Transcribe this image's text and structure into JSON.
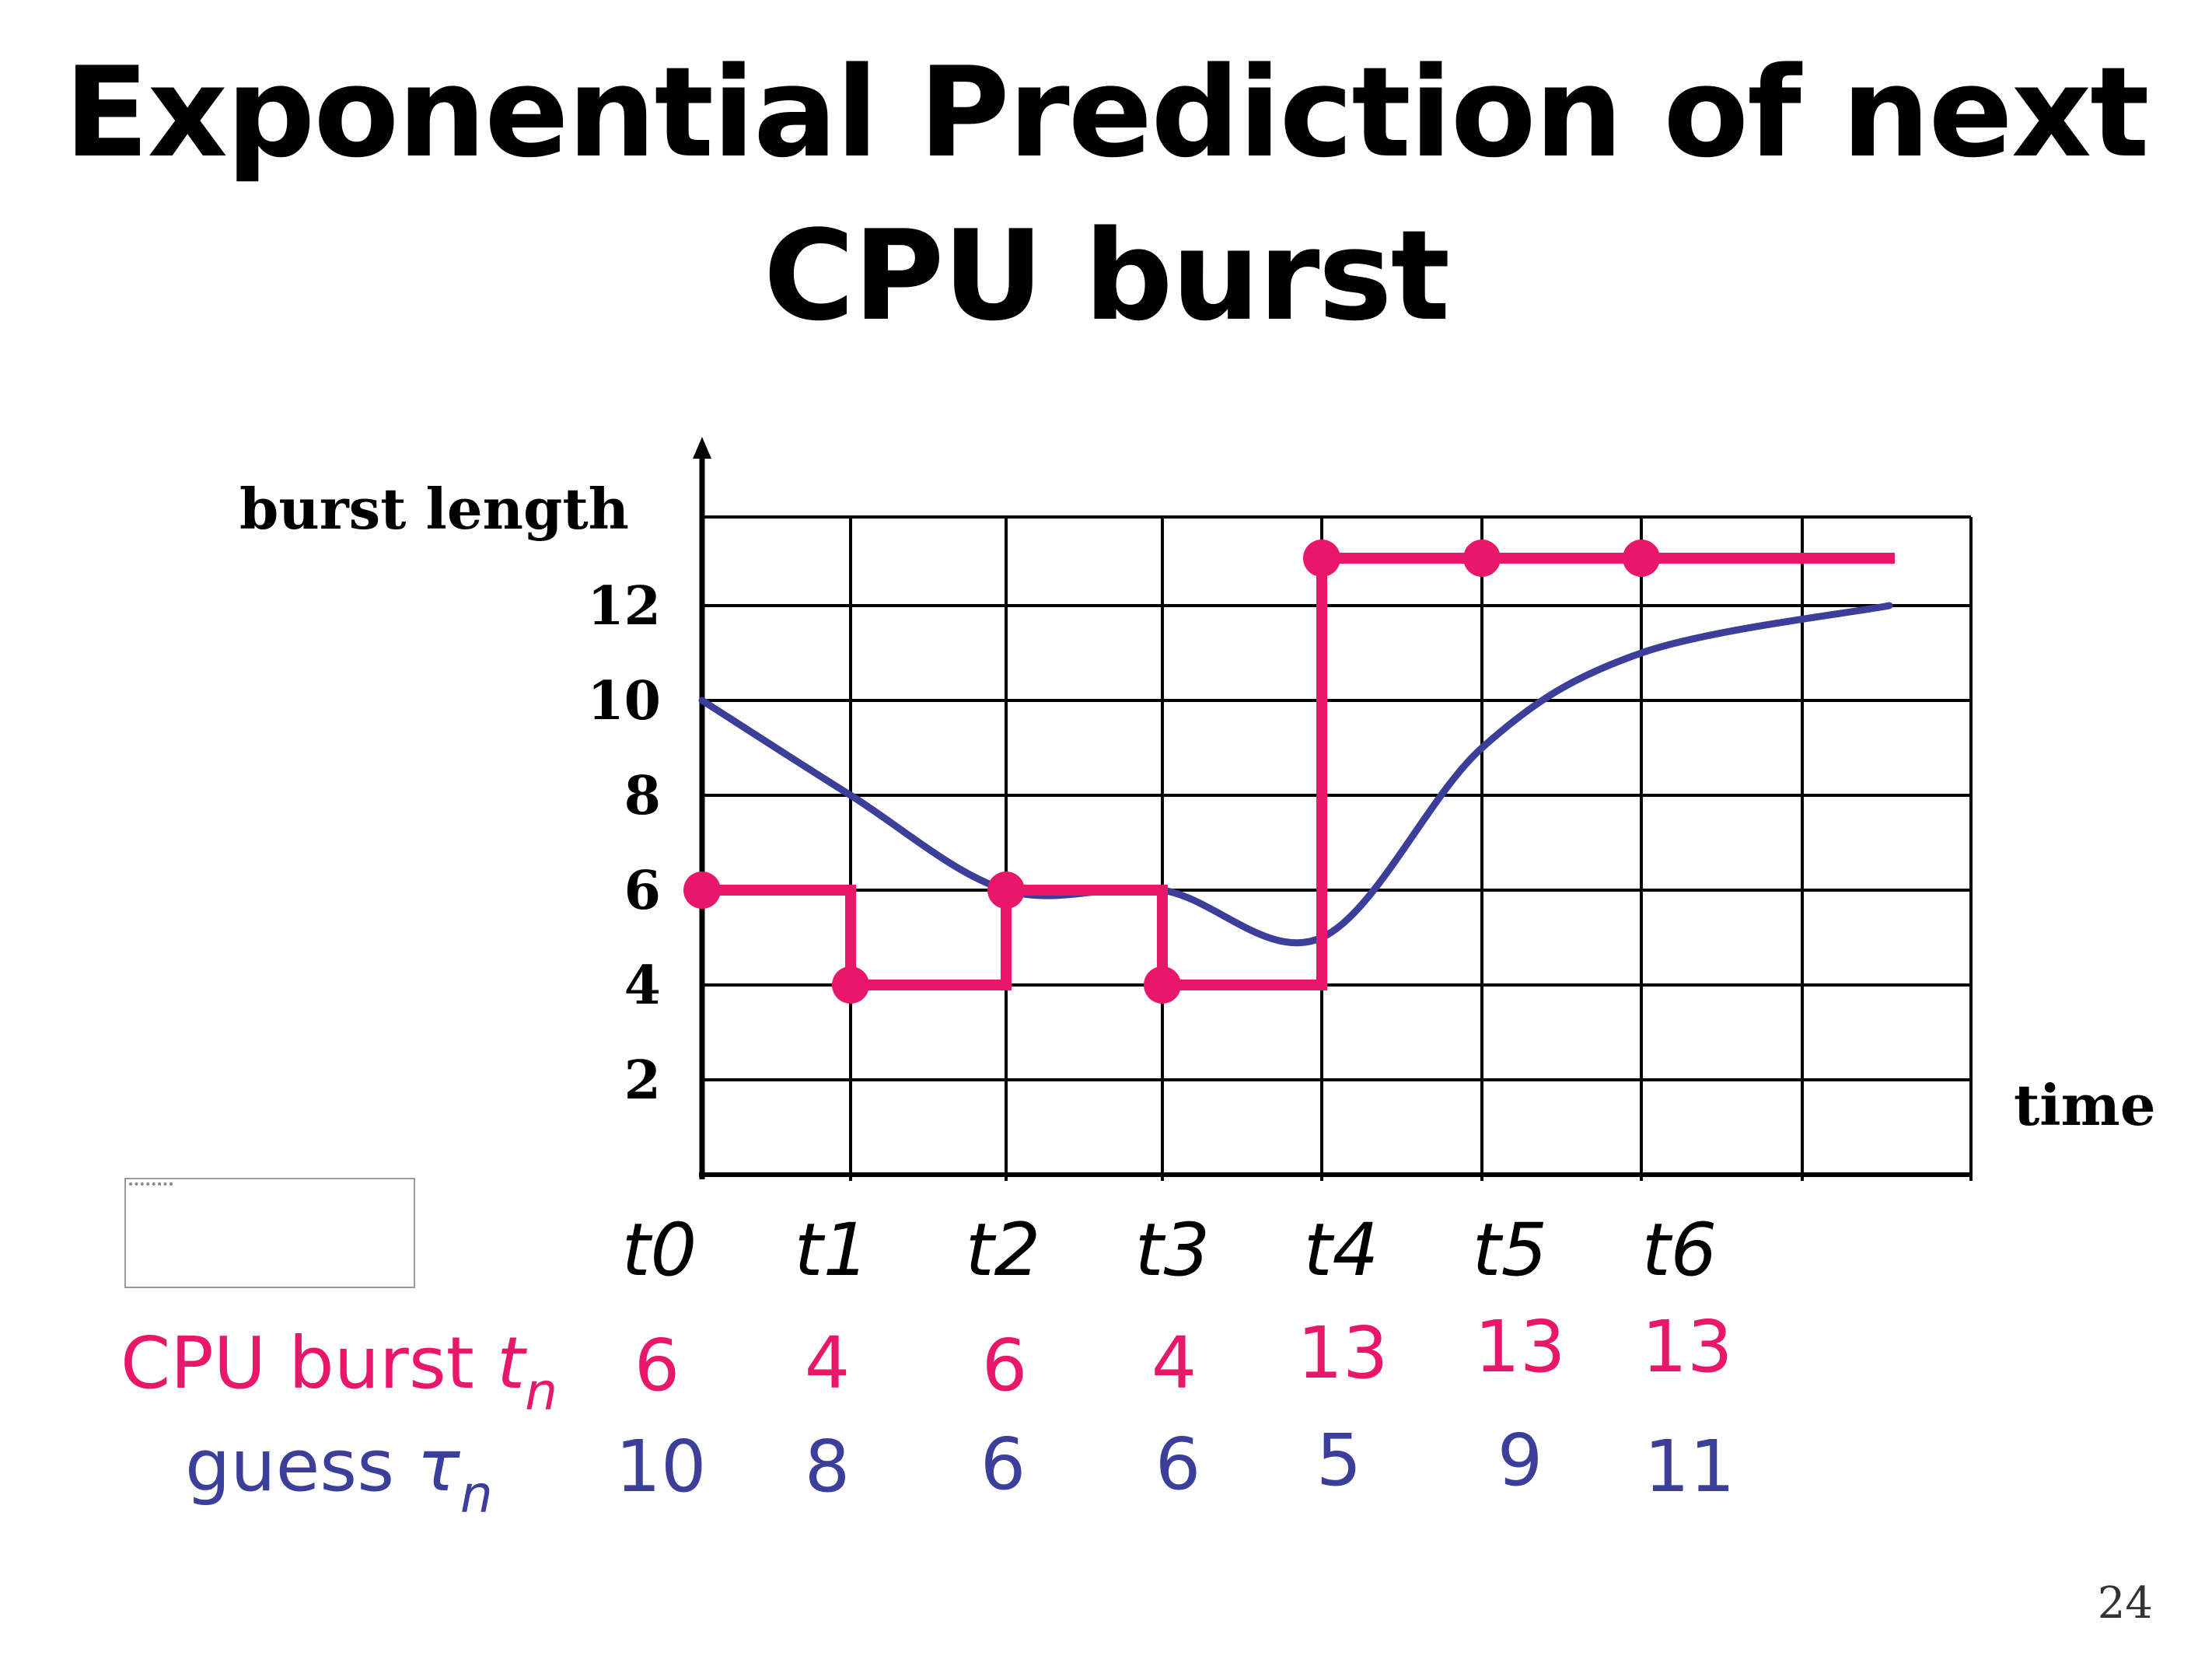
{
  "slide": {
    "title_line1": "Exponential Prediction of next",
    "title_line2": "CPU burst",
    "page_number": "24"
  },
  "rows": {
    "burst_label": "CPU burst ",
    "burst_symbol": "t",
    "burst_subscript": "n",
    "guess_label": "guess ",
    "guess_symbol": "τ",
    "guess_subscript": "n"
  },
  "colors": {
    "burst": "#E8176A",
    "guess": "#3B3F9A",
    "grid": "#000000"
  },
  "chart_data": {
    "type": "line",
    "ylabel": "burst length",
    "xlabel": "time",
    "y_ticks": [
      2,
      4,
      6,
      8,
      10,
      12
    ],
    "ylim": [
      0,
      14
    ],
    "categories": [
      "t0",
      "t1",
      "t2",
      "t3",
      "t4",
      "t5",
      "t6"
    ],
    "grid": true,
    "series": [
      {
        "key": "burst",
        "style": "step-with-markers",
        "values": [
          6,
          4,
          6,
          4,
          13,
          13,
          13
        ]
      },
      {
        "key": "guess",
        "style": "smooth-curve",
        "values": [
          10,
          8,
          6,
          6,
          5,
          9,
          11
        ]
      }
    ],
    "curve_end_value": 12,
    "value_labels": {
      "burst": [
        "6",
        "4",
        "6",
        "4",
        "13",
        "13",
        "13"
      ],
      "guess": [
        "10",
        "8",
        "6",
        "6",
        "5",
        "9",
        "11"
      ]
    }
  }
}
